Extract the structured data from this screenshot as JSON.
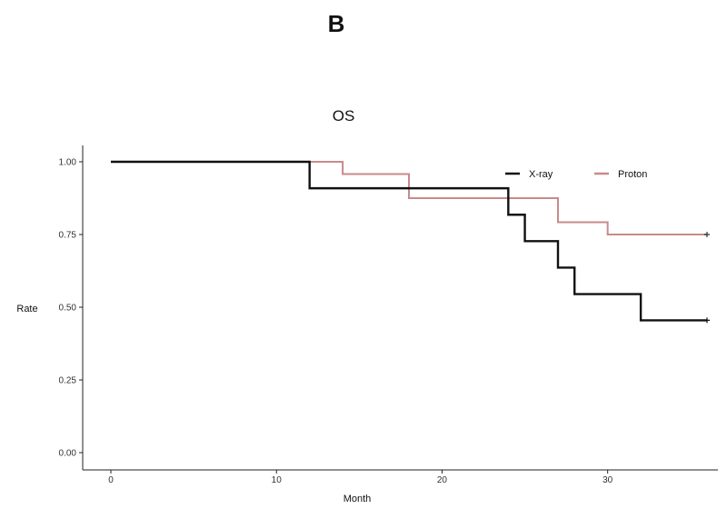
{
  "panel_label": "B",
  "chart_data": {
    "type": "line",
    "subtype": "kaplan-meier-step",
    "title": "OS",
    "xlabel": "Month",
    "ylabel": "Rate",
    "xlim": [
      0,
      36
    ],
    "ylim": [
      0,
      1
    ],
    "x_ticks": [
      0,
      10,
      20,
      30
    ],
    "y_ticks": [
      0,
      0.25,
      0.5,
      0.75,
      1.0
    ],
    "y_tick_labels": [
      "0.00",
      "0.25",
      "0.50",
      "0.75",
      "1.00"
    ],
    "grid": false,
    "legend_position": "top-right",
    "series": [
      {
        "name": "X-ray",
        "color": "#111111",
        "x": [
          0,
          12,
          24,
          25,
          27,
          28,
          32,
          36
        ],
        "y": [
          1.0,
          0.909,
          0.818,
          0.727,
          0.636,
          0.545,
          0.455,
          0.455
        ],
        "censor_x": [
          36
        ],
        "censor_y": [
          0.455
        ]
      },
      {
        "name": "Proton",
        "color": "#c98a8a",
        "x": [
          0,
          14,
          18,
          27,
          30,
          36
        ],
        "y": [
          1.0,
          0.958,
          0.875,
          0.792,
          0.75,
          0.75
        ],
        "censor_x": [
          36
        ],
        "censor_y": [
          0.75
        ]
      }
    ]
  }
}
